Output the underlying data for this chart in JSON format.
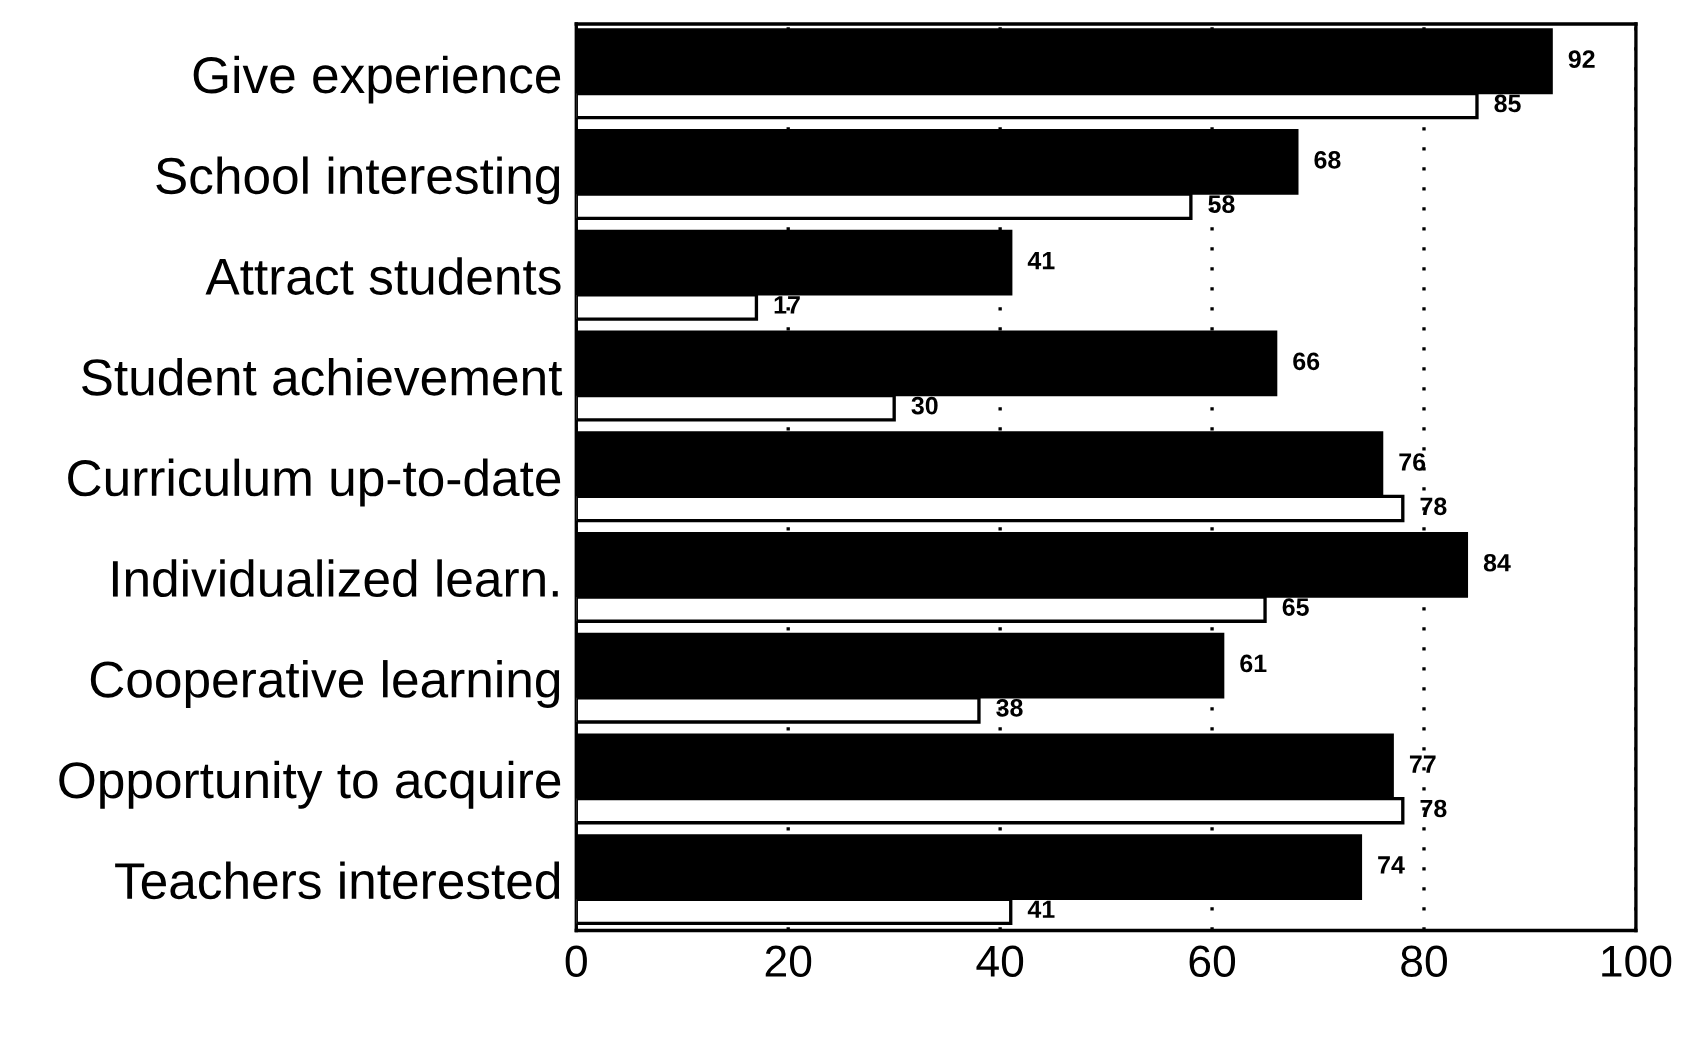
{
  "chart_data": {
    "type": "bar",
    "orientation": "horizontal",
    "categories": [
      "Give experience",
      "School interesting",
      "Attract students",
      "Student achievement",
      "Curriculum up-to-date",
      "Individualized learn.",
      "Cooperative learning",
      "Opportunity to acquire",
      "Teachers interested"
    ],
    "series": [
      {
        "color": "#000000",
        "values": [
          92,
          68,
          41,
          66,
          76,
          84,
          61,
          77,
          74
        ]
      },
      {
        "color": "#ffffff",
        "values": [
          85,
          58,
          17,
          30,
          78,
          65,
          38,
          78,
          41
        ]
      }
    ],
    "xlim": [
      0,
      100
    ],
    "xticks": [
      0,
      20,
      40,
      60,
      80,
      100
    ],
    "grid": "x",
    "data_labels": true
  }
}
